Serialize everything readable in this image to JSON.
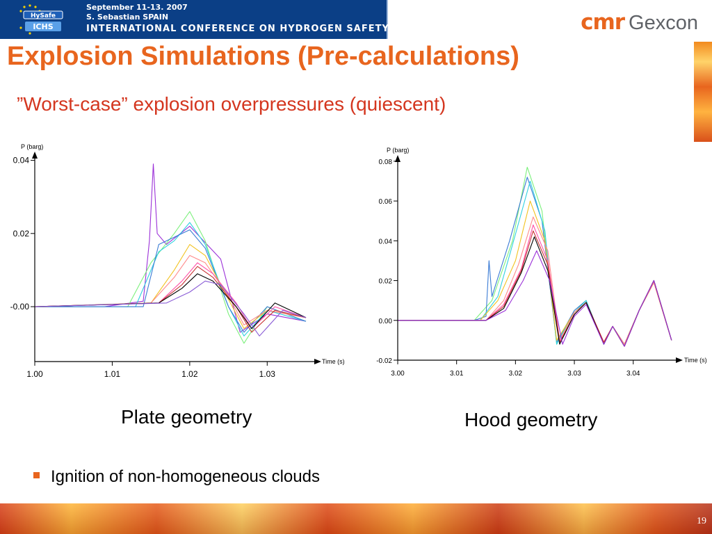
{
  "header": {
    "conference_logo_text": [
      "HySafe",
      "ICHS"
    ],
    "line1": "September 11-13. 2007",
    "line2": "S. Sebastian SPAIN",
    "line3": "INTERNATIONAL CONFERENCE ON HYDROGEN SAFETY",
    "brand_cmr": "cmr",
    "brand_gexcon": "Gexcon"
  },
  "slide": {
    "title": "Explosion Simulations (Pre-calculations)",
    "subtitle": "”Worst-case” explosion overpressures (quiescent)",
    "caption_left": "Plate geometry",
    "caption_right": "Hood geometry",
    "bullet": "Ignition of non-homogeneous clouds",
    "page_number": "19",
    "bullet_color": "#e8651e",
    "title_color": "#e8651e",
    "subtitle_color": "#d4361f"
  },
  "chart_data": [
    {
      "type": "line",
      "ylabel": "P (barg)",
      "xlabel": "Time (s)",
      "xlim": [
        1.0,
        1.035
      ],
      "ylim": [
        -0.015,
        0.042
      ],
      "xticks": [
        1.0,
        1.01,
        1.02,
        1.03
      ],
      "xtick_labels": [
        "1.00",
        "1.01",
        "1.02",
        "1.03"
      ],
      "yticks": [
        0.0,
        0.02,
        0.04
      ],
      "ytick_labels": [
        "-0.00",
        "0.02",
        "0.04"
      ],
      "series": [
        {
          "color": "#9b30d8",
          "x": [
            1.0,
            1.009,
            1.014,
            1.0148,
            1.0153,
            1.0158,
            1.017,
            1.02,
            1.024,
            1.0265,
            1.03,
            1.035
          ],
          "y": [
            0.0,
            0.0,
            0.0015,
            0.018,
            0.039,
            0.02,
            0.017,
            0.022,
            0.013,
            -0.007,
            -0.002,
            -0.004
          ]
        },
        {
          "color": "#7cf07c",
          "x": [
            1.0,
            1.012,
            1.015,
            1.018,
            1.02,
            1.022,
            1.025,
            1.027,
            1.03,
            1.035
          ],
          "y": [
            0.0,
            0.0,
            0.012,
            0.02,
            0.026,
            0.018,
            -0.002,
            -0.01,
            0.0,
            -0.004
          ]
        },
        {
          "color": "#2fd0e0",
          "x": [
            1.0,
            1.013,
            1.016,
            1.018,
            1.02,
            1.022,
            1.025,
            1.027,
            1.03,
            1.035
          ],
          "y": [
            0.0,
            0.0,
            0.015,
            0.018,
            0.023,
            0.017,
            0.0,
            -0.008,
            -0.001,
            -0.004
          ]
        },
        {
          "color": "#3a7bd5",
          "x": [
            1.0,
            1.014,
            1.016,
            1.018,
            1.02,
            1.022,
            1.025,
            1.027,
            1.03,
            1.035
          ],
          "y": [
            0.0,
            0.0,
            0.017,
            0.019,
            0.021,
            0.016,
            0.0,
            -0.007,
            0.0,
            -0.004
          ]
        },
        {
          "color": "#f2c21f",
          "x": [
            1.0,
            1.015,
            1.018,
            1.02,
            1.022,
            1.025,
            1.027,
            1.03,
            1.035
          ],
          "y": [
            0.0,
            0.001,
            0.01,
            0.017,
            0.014,
            0.002,
            -0.006,
            -0.001,
            -0.003
          ]
        },
        {
          "color": "#ff8a8a",
          "x": [
            1.0,
            1.015,
            1.018,
            1.02,
            1.022,
            1.025,
            1.027,
            1.03,
            1.035
          ],
          "y": [
            0.0,
            0.001,
            0.008,
            0.014,
            0.012,
            0.003,
            -0.005,
            -0.001,
            -0.003
          ]
        },
        {
          "color": "#ff4da6",
          "x": [
            1.0,
            1.016,
            1.019,
            1.021,
            1.023,
            1.026,
            1.028,
            1.031,
            1.035
          ],
          "y": [
            0.0,
            0.001,
            0.007,
            0.012,
            0.009,
            0.001,
            -0.006,
            0.0,
            -0.003
          ]
        },
        {
          "color": "#c83232",
          "x": [
            1.0,
            1.016,
            1.019,
            1.021,
            1.023,
            1.026,
            1.028,
            1.031,
            1.035
          ],
          "y": [
            0.0,
            0.001,
            0.006,
            0.011,
            0.008,
            0.0,
            -0.007,
            -0.001,
            -0.003
          ]
        },
        {
          "color": "#000000",
          "x": [
            1.0,
            1.016,
            1.019,
            1.021,
            1.023,
            1.026,
            1.028,
            1.031,
            1.035
          ],
          "y": [
            0.0,
            0.001,
            0.005,
            0.009,
            0.007,
            0.0,
            -0.006,
            0.001,
            -0.003
          ]
        },
        {
          "color": "#8a5cd6",
          "x": [
            1.0,
            1.017,
            1.02,
            1.022,
            1.024,
            1.027,
            1.029,
            1.032,
            1.035
          ],
          "y": [
            0.0,
            0.001,
            0.004,
            0.007,
            0.006,
            -0.002,
            -0.008,
            -0.001,
            -0.003
          ]
        }
      ]
    },
    {
      "type": "line",
      "ylabel": "P (barg)",
      "xlabel": "Time (s)",
      "xlim": [
        3.0,
        3.047
      ],
      "ylim": [
        -0.02,
        0.081
      ],
      "xticks": [
        3.0,
        3.01,
        3.02,
        3.03,
        3.04
      ],
      "xtick_labels": [
        "3.00",
        "3.01",
        "3.02",
        "3.03",
        "3.04"
      ],
      "yticks": [
        -0.02,
        0.0,
        0.02,
        0.04,
        0.06,
        0.08
      ],
      "ytick_labels": [
        "-0.02",
        "0.00",
        "0.02",
        "0.04",
        "0.06",
        "0.08"
      ],
      "series": [
        {
          "color": "#7cf07c",
          "x": [
            3.0,
            3.013,
            3.016,
            3.0195,
            3.022,
            3.0245,
            3.027,
            3.03,
            3.032,
            3.035,
            3.0365,
            3.0385,
            3.041,
            3.0435,
            3.0465
          ],
          "y": [
            0.0,
            0.0,
            0.01,
            0.04,
            0.077,
            0.055,
            -0.012,
            0.005,
            0.01,
            -0.012,
            -0.003,
            -0.012,
            0.005,
            0.02,
            -0.01
          ]
        },
        {
          "color": "#3a7bd5",
          "x": [
            3.0,
            3.013,
            3.015,
            3.0155,
            3.016,
            3.019,
            3.022,
            3.0245,
            3.027,
            3.03,
            3.032,
            3.035,
            3.0365,
            3.0385,
            3.041,
            3.0435,
            3.0465
          ],
          "y": [
            0.0,
            0.0,
            0.002,
            0.03,
            0.012,
            0.04,
            0.072,
            0.05,
            -0.011,
            0.005,
            0.01,
            -0.012,
            -0.003,
            -0.012,
            0.005,
            0.02,
            -0.01
          ]
        },
        {
          "color": "#2fd0e0",
          "x": [
            3.0,
            3.014,
            3.017,
            3.0195,
            3.0225,
            3.025,
            3.027,
            3.03,
            3.032,
            3.035,
            3.0365,
            3.0385,
            3.041,
            3.0435,
            3.0465
          ],
          "y": [
            0.0,
            0.0,
            0.012,
            0.038,
            0.07,
            0.045,
            -0.012,
            0.004,
            0.01,
            -0.012,
            -0.003,
            -0.012,
            0.005,
            0.02,
            -0.01
          ]
        },
        {
          "color": "#f2c21f",
          "x": [
            3.0,
            3.014,
            3.017,
            3.02,
            3.0225,
            3.025,
            3.027,
            3.03,
            3.032,
            3.035,
            3.0365,
            3.0385,
            3.041,
            3.0435,
            3.0465
          ],
          "y": [
            0.0,
            0.0,
            0.01,
            0.03,
            0.06,
            0.04,
            -0.01,
            0.004,
            0.009,
            -0.011,
            -0.003,
            -0.012,
            0.005,
            0.019,
            -0.01
          ]
        },
        {
          "color": "#ff8a8a",
          "x": [
            3.0,
            3.015,
            3.018,
            3.0205,
            3.023,
            3.0255,
            3.0275,
            3.03,
            3.032,
            3.035,
            3.0365,
            3.0385,
            3.041,
            3.0435,
            3.0465
          ],
          "y": [
            0.0,
            0.0,
            0.01,
            0.028,
            0.052,
            0.035,
            -0.01,
            0.004,
            0.009,
            -0.011,
            -0.003,
            -0.012,
            0.005,
            0.019,
            -0.01
          ]
        },
        {
          "color": "#ff4da6",
          "x": [
            3.0,
            3.015,
            3.018,
            3.021,
            3.023,
            3.0255,
            3.0275,
            3.03,
            3.032,
            3.035,
            3.0365,
            3.0385,
            3.041,
            3.0435,
            3.0465
          ],
          "y": [
            0.0,
            0.0,
            0.008,
            0.026,
            0.048,
            0.03,
            -0.011,
            0.003,
            0.009,
            -0.011,
            -0.003,
            -0.013,
            0.005,
            0.02,
            -0.01
          ]
        },
        {
          "color": "#c83232",
          "x": [
            3.0,
            3.015,
            3.018,
            3.021,
            3.023,
            3.0255,
            3.0275,
            3.03,
            3.032,
            3.035,
            3.0365,
            3.0385,
            3.041,
            3.0435,
            3.0465
          ],
          "y": [
            0.0,
            0.0,
            0.007,
            0.025,
            0.045,
            0.028,
            -0.011,
            0.003,
            0.009,
            -0.011,
            -0.003,
            -0.013,
            0.005,
            0.02,
            -0.01
          ]
        },
        {
          "color": "#000000",
          "x": [
            3.0,
            3.015,
            3.018,
            3.021,
            3.0232,
            3.0255,
            3.0275,
            3.03,
            3.032,
            3.035,
            3.0365,
            3.0385,
            3.041,
            3.0435,
            3.0465
          ],
          "y": [
            0.0,
            0.0,
            0.006,
            0.024,
            0.042,
            0.025,
            -0.012,
            0.003,
            0.009,
            -0.012,
            -0.003,
            -0.013,
            0.005,
            0.02,
            -0.01
          ]
        },
        {
          "color": "#9b30d8",
          "x": [
            3.0,
            3.015,
            3.0183,
            3.0213,
            3.0236,
            3.0258,
            3.028,
            3.03,
            3.032,
            3.035,
            3.0365,
            3.0385,
            3.041,
            3.0435,
            3.0465
          ],
          "y": [
            0.0,
            0.0,
            0.005,
            0.02,
            0.035,
            0.02,
            -0.012,
            0.002,
            0.008,
            -0.012,
            -0.003,
            -0.013,
            0.005,
            0.02,
            -0.01
          ]
        }
      ]
    }
  ]
}
